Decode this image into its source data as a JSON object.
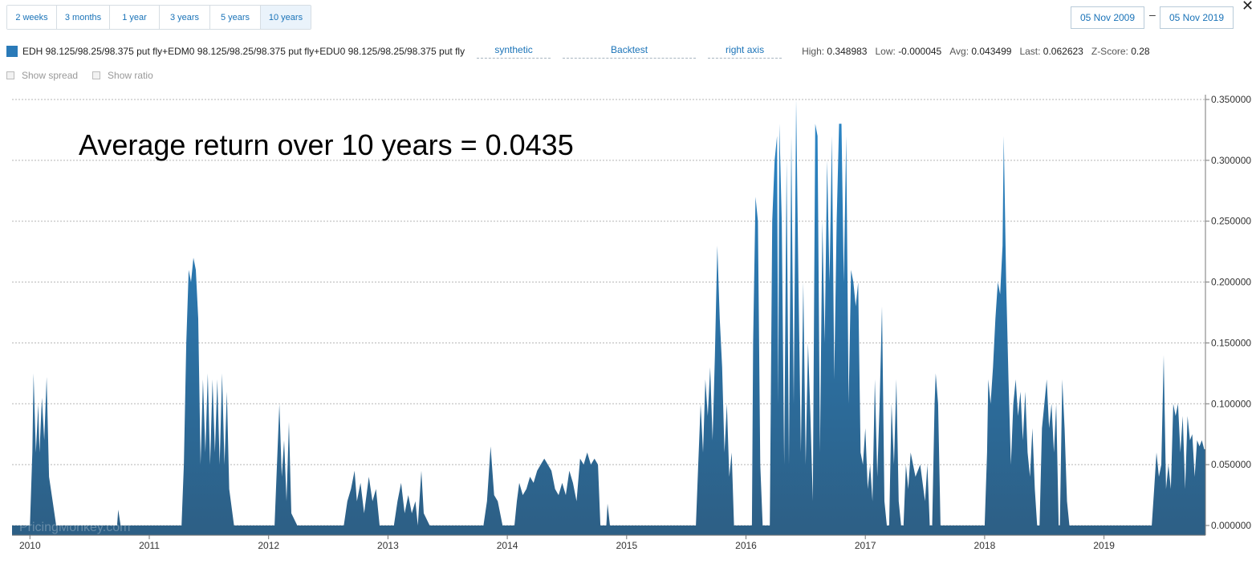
{
  "range_buttons": [
    {
      "label": "2 weeks",
      "active": false
    },
    {
      "label": "3 months",
      "active": false
    },
    {
      "label": "1 year",
      "active": false
    },
    {
      "label": "3 years",
      "active": false
    },
    {
      "label": "5 years",
      "active": false
    },
    {
      "label": "10 years",
      "active": true
    }
  ],
  "date_range": {
    "start": "05 Nov 2009",
    "separator": "–",
    "end": "05 Nov 2019"
  },
  "close_label": "✕",
  "legend": {
    "color": "#2a7ab8",
    "series_name": "EDH 98.125/98.25/98.375 put fly+EDM0 98.125/98.25/98.375 put fly+EDU0 98.125/98.25/98.375 put fly",
    "dropdowns": {
      "type": "synthetic",
      "mode": "Backtest",
      "axis": "right axis"
    }
  },
  "stats": [
    {
      "label": "High:",
      "value": "0.348983"
    },
    {
      "label": "Low:",
      "value": "-0.000045"
    },
    {
      "label": "Avg:",
      "value": "0.043499"
    },
    {
      "label": "Last:",
      "value": "0.062623"
    },
    {
      "label": "Z-Score:",
      "value": "0.28"
    }
  ],
  "toggles": {
    "spread": "Show spread",
    "ratio": "Show ratio"
  },
  "annotation": "Average return over 10 years = 0.0435",
  "watermark": "PricingMonkey.com",
  "chart_data": {
    "type": "area",
    "series": [
      {
        "name": "EDH 98.125/98.25/98.375 put fly+EDM0 98.125/98.25/98.375 put fly+EDU0 98.125/98.25/98.375 put fly",
        "color_top": "#2a86c8",
        "color_bottom": "#2d5f85"
      }
    ],
    "ylim": [
      -0.008,
      0.35
    ],
    "y_ticks": [
      0.35,
      0.3,
      0.25,
      0.2,
      0.15,
      0.1,
      0.05,
      0.0
    ],
    "y_tick_labels": [
      "0.350000",
      "0.300000",
      "0.250000",
      "0.200000",
      "0.150000",
      "0.100000",
      "0.050000",
      "0.000000"
    ],
    "xlim": [
      2009.85,
      2019.85
    ],
    "x_ticks": [
      2010,
      2011,
      2012,
      2013,
      2014,
      2015,
      2016,
      2017,
      2018,
      2019
    ],
    "x_tick_labels": [
      "2010",
      "2011",
      "2012",
      "2013",
      "2014",
      "2015",
      "2016",
      "2017",
      "2018",
      "2019"
    ],
    "y_axis_position": "right",
    "grid": "horizontal dashed",
    "points": [
      [
        2009.85,
        0
      ],
      [
        2010.0,
        0
      ],
      [
        2010.02,
        0.06
      ],
      [
        2010.03,
        0.125
      ],
      [
        2010.05,
        0.06
      ],
      [
        2010.07,
        0.1
      ],
      [
        2010.08,
        0.06
      ],
      [
        2010.1,
        0.105
      ],
      [
        2010.12,
        0.07
      ],
      [
        2010.14,
        0.122
      ],
      [
        2010.16,
        0.04
      ],
      [
        2010.19,
        0.02
      ],
      [
        2010.22,
        0
      ],
      [
        2010.73,
        0
      ],
      [
        2010.74,
        0.013
      ],
      [
        2010.76,
        0
      ],
      [
        2011.27,
        0
      ],
      [
        2011.29,
        0.05
      ],
      [
        2011.31,
        0.15
      ],
      [
        2011.33,
        0.21
      ],
      [
        2011.35,
        0.2
      ],
      [
        2011.37,
        0.22
      ],
      [
        2011.39,
        0.21
      ],
      [
        2011.41,
        0.17
      ],
      [
        2011.43,
        0.05
      ],
      [
        2011.45,
        0.12
      ],
      [
        2011.47,
        0.06
      ],
      [
        2011.49,
        0.125
      ],
      [
        2011.51,
        0.05
      ],
      [
        2011.53,
        0.12
      ],
      [
        2011.55,
        0.06
      ],
      [
        2011.57,
        0.12
      ],
      [
        2011.59,
        0.05
      ],
      [
        2011.61,
        0.125
      ],
      [
        2011.63,
        0.05
      ],
      [
        2011.65,
        0.11
      ],
      [
        2011.67,
        0.03
      ],
      [
        2011.71,
        0
      ],
      [
        2012.05,
        0
      ],
      [
        2012.07,
        0.05
      ],
      [
        2012.09,
        0.1
      ],
      [
        2012.11,
        0.04
      ],
      [
        2012.13,
        0.07
      ],
      [
        2012.15,
        0.02
      ],
      [
        2012.17,
        0.085
      ],
      [
        2012.19,
        0.01
      ],
      [
        2012.24,
        0
      ],
      [
        2012.63,
        0
      ],
      [
        2012.66,
        0.02
      ],
      [
        2012.69,
        0.03
      ],
      [
        2012.72,
        0.045
      ],
      [
        2012.74,
        0.02
      ],
      [
        2012.77,
        0.035
      ],
      [
        2012.8,
        0.01
      ],
      [
        2012.84,
        0.04
      ],
      [
        2012.87,
        0.02
      ],
      [
        2012.9,
        0.03
      ],
      [
        2012.93,
        0
      ],
      [
        2013.05,
        0
      ],
      [
        2013.08,
        0.02
      ],
      [
        2013.11,
        0.035
      ],
      [
        2013.14,
        0.01
      ],
      [
        2013.17,
        0.025
      ],
      [
        2013.2,
        0.01
      ],
      [
        2013.23,
        0.02
      ],
      [
        2013.25,
        0
      ],
      [
        2013.28,
        0.045
      ],
      [
        2013.3,
        0.01
      ],
      [
        2013.35,
        0
      ],
      [
        2013.8,
        0
      ],
      [
        2013.83,
        0.02
      ],
      [
        2013.86,
        0.065
      ],
      [
        2013.89,
        0.025
      ],
      [
        2013.92,
        0.02
      ],
      [
        2013.96,
        0
      ],
      [
        2014.06,
        0
      ],
      [
        2014.08,
        0.02
      ],
      [
        2014.1,
        0.035
      ],
      [
        2014.13,
        0.025
      ],
      [
        2014.16,
        0.03
      ],
      [
        2014.19,
        0.04
      ],
      [
        2014.22,
        0.035
      ],
      [
        2014.25,
        0.045
      ],
      [
        2014.28,
        0.05
      ],
      [
        2014.31,
        0.055
      ],
      [
        2014.34,
        0.05
      ],
      [
        2014.37,
        0.045
      ],
      [
        2014.4,
        0.03
      ],
      [
        2014.43,
        0.025
      ],
      [
        2014.46,
        0.035
      ],
      [
        2014.49,
        0.025
      ],
      [
        2014.52,
        0.045
      ],
      [
        2014.55,
        0.035
      ],
      [
        2014.58,
        0.02
      ],
      [
        2014.61,
        0.055
      ],
      [
        2014.64,
        0.05
      ],
      [
        2014.67,
        0.06
      ],
      [
        2014.7,
        0.05
      ],
      [
        2014.73,
        0.055
      ],
      [
        2014.76,
        0.05
      ],
      [
        2014.78,
        0
      ],
      [
        2014.83,
        0
      ],
      [
        2014.84,
        0.018
      ],
      [
        2014.86,
        0
      ],
      [
        2015.58,
        0
      ],
      [
        2015.6,
        0.05
      ],
      [
        2015.62,
        0.1
      ],
      [
        2015.64,
        0.06
      ],
      [
        2015.66,
        0.12
      ],
      [
        2015.68,
        0.09
      ],
      [
        2015.7,
        0.13
      ],
      [
        2015.72,
        0.07
      ],
      [
        2015.74,
        0.14
      ],
      [
        2015.76,
        0.23
      ],
      [
        2015.78,
        0.17
      ],
      [
        2015.8,
        0.13
      ],
      [
        2015.82,
        0.06
      ],
      [
        2015.84,
        0.1
      ],
      [
        2015.86,
        0.04
      ],
      [
        2015.88,
        0.06
      ],
      [
        2015.9,
        0
      ],
      [
        2016.05,
        0
      ],
      [
        2016.06,
        0.15
      ],
      [
        2016.08,
        0.27
      ],
      [
        2016.1,
        0.25
      ],
      [
        2016.12,
        0.05
      ],
      [
        2016.14,
        0
      ],
      [
        2016.2,
        0
      ],
      [
        2016.22,
        0.25
      ],
      [
        2016.24,
        0.3
      ],
      [
        2016.26,
        0.32
      ],
      [
        2016.27,
        0.1
      ],
      [
        2016.28,
        0.33
      ],
      [
        2016.3,
        0.25
      ],
      [
        2016.32,
        0.05
      ],
      [
        2016.34,
        0.3
      ],
      [
        2016.36,
        0.05
      ],
      [
        2016.38,
        0.32
      ],
      [
        2016.4,
        0.1
      ],
      [
        2016.42,
        0.35
      ],
      [
        2016.44,
        0.2
      ],
      [
        2016.46,
        0.06
      ],
      [
        2016.48,
        0.2
      ],
      [
        2016.5,
        0.05
      ],
      [
        2016.52,
        0.15
      ],
      [
        2016.54,
        0.09
      ],
      [
        2016.56,
        0.02
      ],
      [
        2016.58,
        0.33
      ],
      [
        2016.6,
        0.32
      ],
      [
        2016.62,
        0.06
      ],
      [
        2016.64,
        0.25
      ],
      [
        2016.66,
        0.15
      ],
      [
        2016.68,
        0.3
      ],
      [
        2016.7,
        0.2
      ],
      [
        2016.72,
        0.32
      ],
      [
        2016.74,
        0.12
      ],
      [
        2016.76,
        0.25
      ],
      [
        2016.78,
        0.33
      ],
      [
        2016.8,
        0.33
      ],
      [
        2016.82,
        0.2
      ],
      [
        2016.84,
        0.32
      ],
      [
        2016.86,
        0.1
      ],
      [
        2016.88,
        0.21
      ],
      [
        2016.9,
        0.2
      ],
      [
        2016.92,
        0.18
      ],
      [
        2016.94,
        0.2
      ],
      [
        2016.96,
        0.06
      ],
      [
        2016.98,
        0.05
      ],
      [
        2017.0,
        0.08
      ],
      [
        2017.02,
        0.03
      ],
      [
        2017.04,
        0.05
      ],
      [
        2017.06,
        0.02
      ],
      [
        2017.08,
        0.12
      ],
      [
        2017.1,
        0.04
      ],
      [
        2017.12,
        0.1
      ],
      [
        2017.14,
        0.18
      ],
      [
        2017.16,
        0.02
      ],
      [
        2017.18,
        0
      ],
      [
        2017.2,
        0
      ],
      [
        2017.22,
        0.1
      ],
      [
        2017.24,
        0.05
      ],
      [
        2017.26,
        0.12
      ],
      [
        2017.28,
        0.02
      ],
      [
        2017.3,
        0
      ],
      [
        2017.32,
        0
      ],
      [
        2017.34,
        0.05
      ],
      [
        2017.36,
        0.03
      ],
      [
        2017.38,
        0.06
      ],
      [
        2017.42,
        0.04
      ],
      [
        2017.46,
        0.05
      ],
      [
        2017.5,
        0.02
      ],
      [
        2017.52,
        0.05
      ],
      [
        2017.54,
        0
      ],
      [
        2017.56,
        0
      ],
      [
        2017.58,
        0.1
      ],
      [
        2017.59,
        0.125
      ],
      [
        2017.61,
        0.1
      ],
      [
        2017.63,
        0
      ],
      [
        2018.0,
        0
      ],
      [
        2018.02,
        0.06
      ],
      [
        2018.03,
        0.12
      ],
      [
        2018.05,
        0.1
      ],
      [
        2018.07,
        0.13
      ],
      [
        2018.09,
        0.17
      ],
      [
        2018.11,
        0.2
      ],
      [
        2018.13,
        0.19
      ],
      [
        2018.15,
        0.23
      ],
      [
        2018.16,
        0.32
      ],
      [
        2018.18,
        0.2
      ],
      [
        2018.2,
        0.12
      ],
      [
        2018.22,
        0.05
      ],
      [
        2018.24,
        0.1
      ],
      [
        2018.26,
        0.12
      ],
      [
        2018.28,
        0.09
      ],
      [
        2018.3,
        0.11
      ],
      [
        2018.32,
        0.07
      ],
      [
        2018.34,
        0.11
      ],
      [
        2018.36,
        0.06
      ],
      [
        2018.38,
        0.04
      ],
      [
        2018.4,
        0.08
      ],
      [
        2018.42,
        0.03
      ],
      [
        2018.44,
        0
      ],
      [
        2018.46,
        0
      ],
      [
        2018.48,
        0.08
      ],
      [
        2018.5,
        0.1
      ],
      [
        2018.52,
        0.12
      ],
      [
        2018.54,
        0.08
      ],
      [
        2018.56,
        0.1
      ],
      [
        2018.58,
        0.06
      ],
      [
        2018.6,
        0.1
      ],
      [
        2018.62,
        0
      ],
      [
        2018.63,
        0
      ],
      [
        2018.65,
        0.12
      ],
      [
        2018.67,
        0.08
      ],
      [
        2018.69,
        0.02
      ],
      [
        2018.71,
        0
      ],
      [
        2019.4,
        0
      ],
      [
        2019.42,
        0.03
      ],
      [
        2019.44,
        0.06
      ],
      [
        2019.46,
        0.04
      ],
      [
        2019.48,
        0.05
      ],
      [
        2019.5,
        0.14
      ],
      [
        2019.52,
        0.03
      ],
      [
        2019.54,
        0.05
      ],
      [
        2019.56,
        0.03
      ],
      [
        2019.58,
        0.1
      ],
      [
        2019.6,
        0.09
      ],
      [
        2019.62,
        0.1
      ],
      [
        2019.64,
        0.06
      ],
      [
        2019.66,
        0.09
      ],
      [
        2019.68,
        0.03
      ],
      [
        2019.7,
        0.09
      ],
      [
        2019.72,
        0.07
      ],
      [
        2019.74,
        0.075
      ],
      [
        2019.76,
        0.04
      ],
      [
        2019.78,
        0.07
      ],
      [
        2019.8,
        0.065
      ],
      [
        2019.82,
        0.07
      ],
      [
        2019.84,
        0.0626
      ],
      [
        2019.85,
        0.0626
      ]
    ]
  }
}
